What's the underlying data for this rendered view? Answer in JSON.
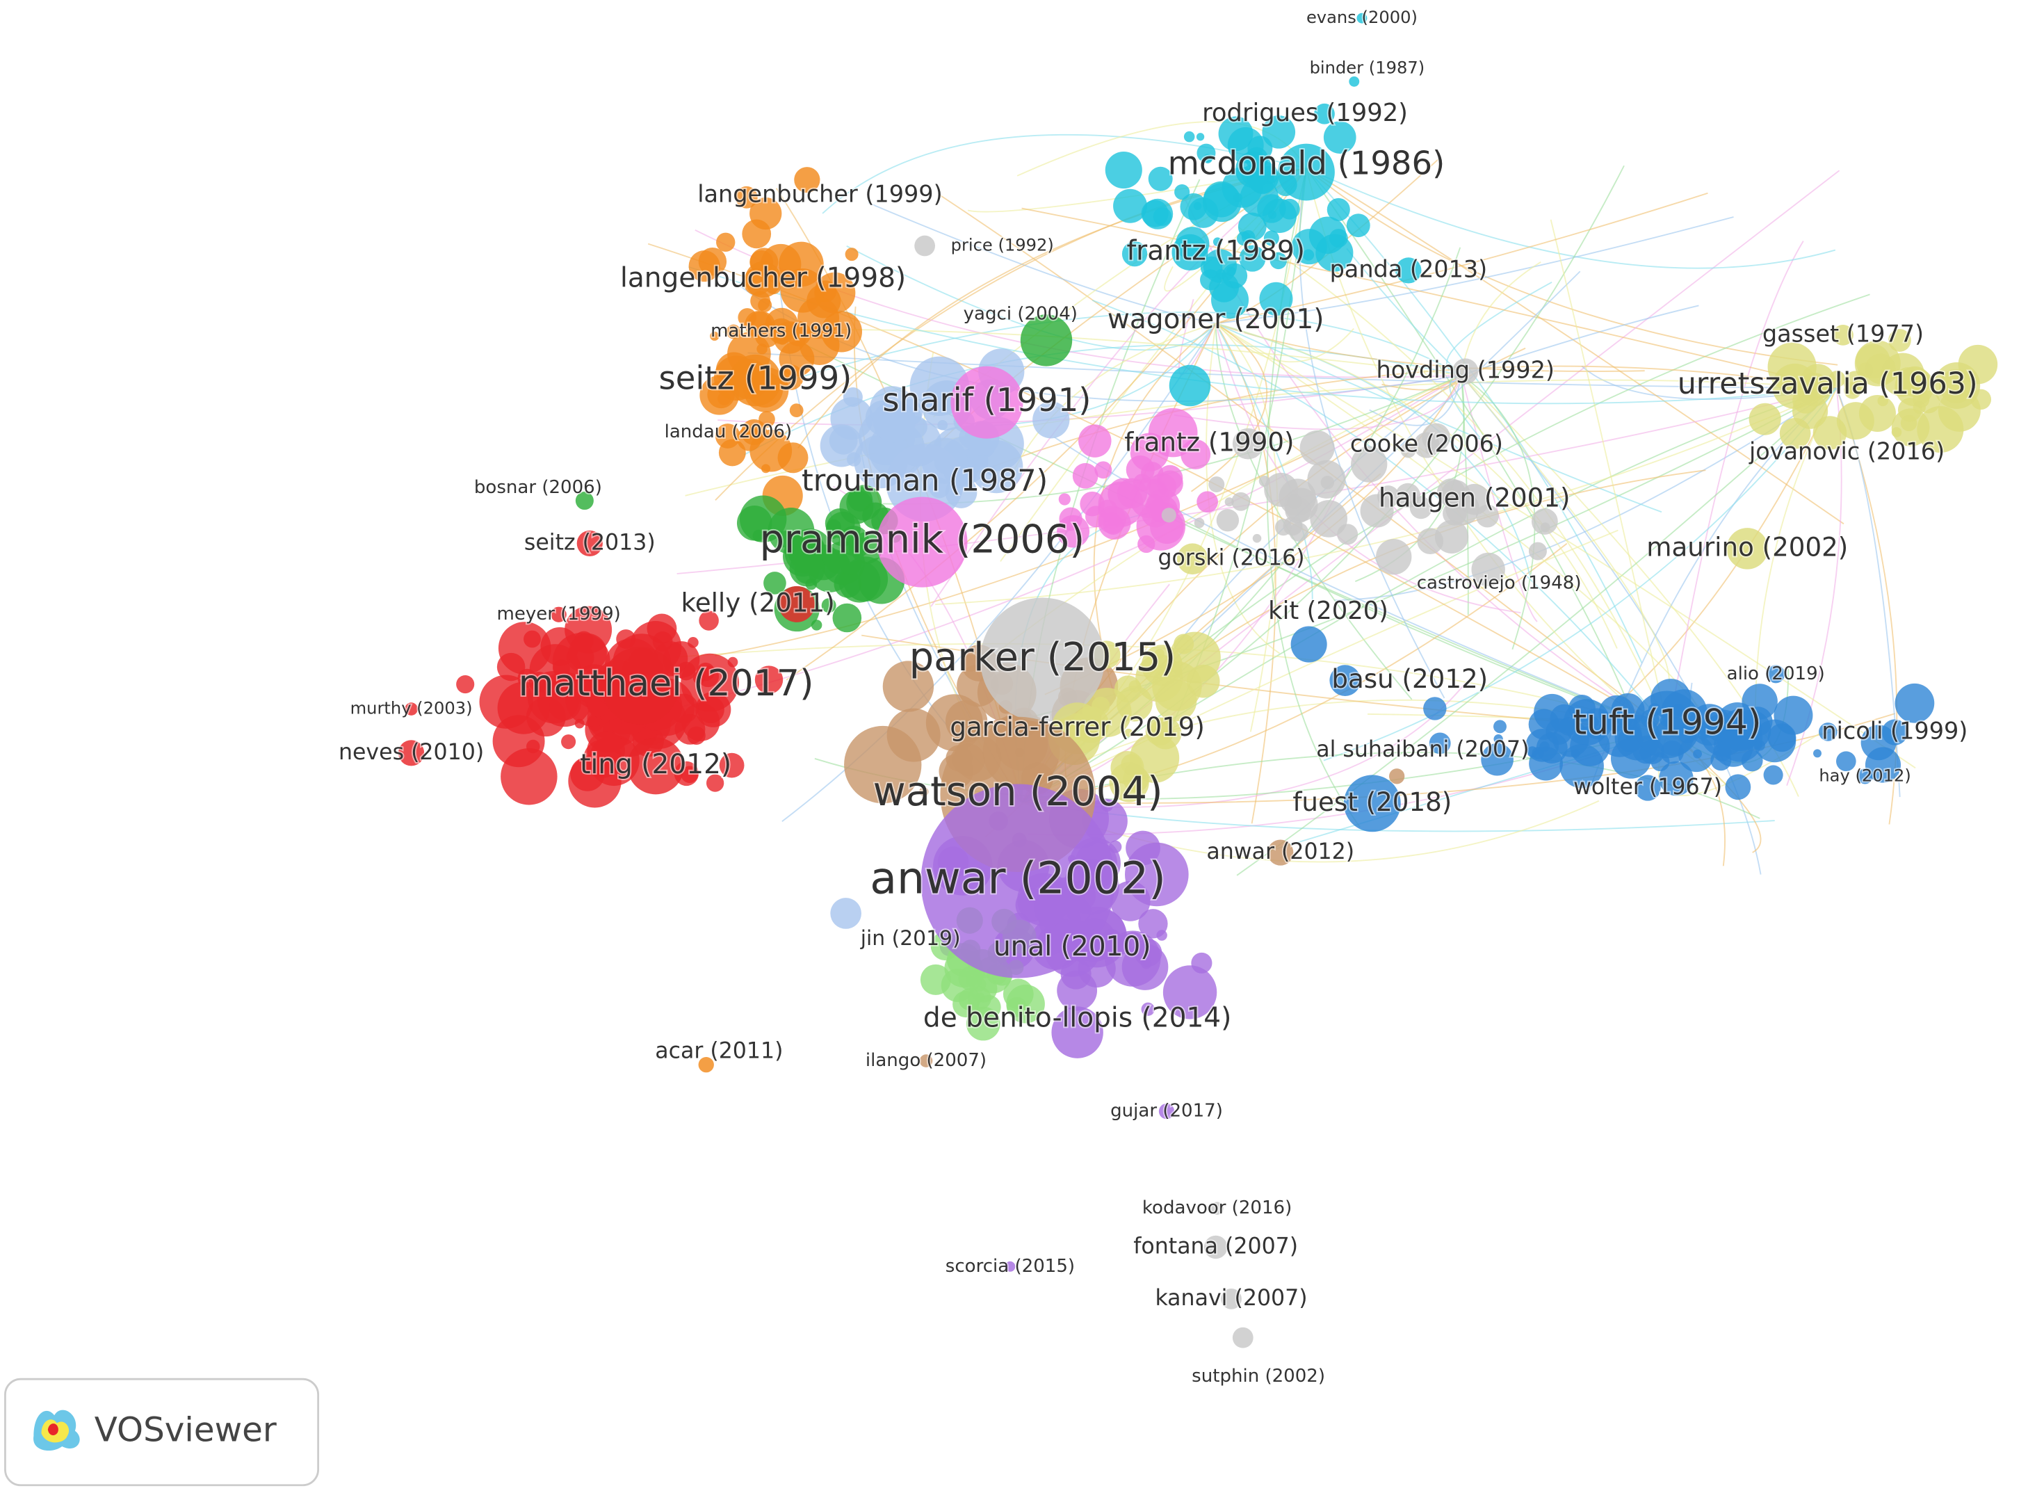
{
  "nodes": [
    "evans (2000)",
    "binder (1987)",
    "rodrigues (1992)",
    "mcdonald (1986)",
    "langenbucher (1999)",
    "price (1992)",
    "frantz (1989)",
    "panda (2013)",
    "langenbucher (1998)",
    "yagci (2004)",
    "wagoner (2001)",
    "mathers (1991)",
    "gasset (1977)",
    "hovding (1992)",
    "seitz (1999)",
    "urretszavalia (1963)",
    "sharif (1991)",
    "landau (2006)",
    "frantz (1990)",
    "cooke (2006)",
    "jovanovic (2016)",
    "bosnar (2006)",
    "troutman (1987)",
    "haugen (2001)",
    "seitz (2013)",
    "pramanik (2006)",
    "maurino (2002)",
    "gorski (2016)",
    "castroviejo (1948)",
    "kelly (2011)",
    "meyer (1999)",
    "kit (2020)",
    "parker (2015)",
    "matthaei (2017)",
    "basu (2012)",
    "alio (2019)",
    "murthy (2003)",
    "garcia-ferrer (2019)",
    "tuft (1994)",
    "nicoli (1999)",
    "al suhaibani (2007)",
    "neves (2010)",
    "ting (2012)",
    "wolter (1967)",
    "hay (2012)",
    "watson (2004)",
    "fuest (2018)",
    "anwar (2012)",
    "anwar (2002)",
    "jin (2019)",
    "unal (2010)",
    "de benito-llopis (2014)",
    "acar (2011)",
    "ilango (2007)",
    "gujar (2017)",
    "kodavoor (2016)",
    "fontana (2007)",
    "scorcia (2015)",
    "kanavi (2007)",
    "sutphin (2002)"
  ],
  "logo": {
    "text": "VOSviewer"
  }
}
